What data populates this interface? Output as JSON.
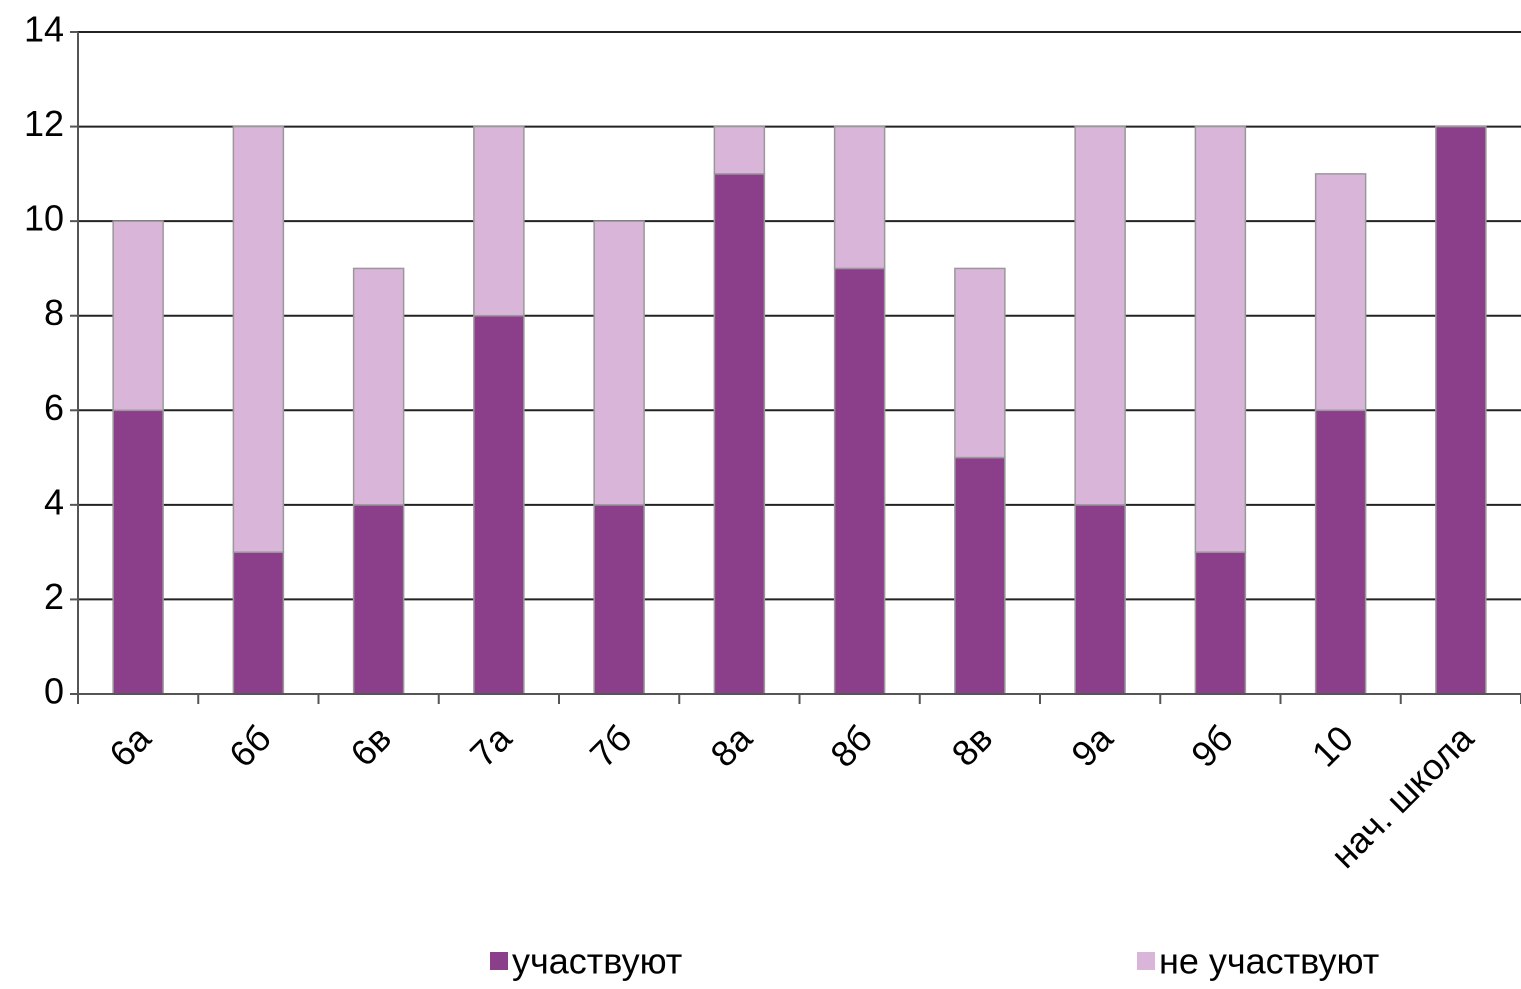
{
  "chart_data": {
    "type": "stacked_bar",
    "categories": [
      "6а",
      "6б",
      "6в",
      "7а",
      "7б",
      "8а",
      "8б",
      "8в",
      "9а",
      "9б",
      "10",
      "нач. школа"
    ],
    "series": [
      {
        "name": "участвуют",
        "color": "#8b3f8b",
        "values": [
          6,
          3,
          4,
          8,
          4,
          11,
          9,
          5,
          4,
          3,
          6,
          12
        ]
      },
      {
        "name": "не участвуют",
        "color": "#d9b5d9",
        "values": [
          4,
          9,
          5,
          4,
          6,
          1,
          3,
          4,
          8,
          9,
          5,
          0
        ]
      }
    ],
    "ylim": [
      0,
      14
    ],
    "yticks": [
      0,
      2,
      4,
      6,
      8,
      10,
      12,
      14
    ],
    "grid": true,
    "legend": "bottom"
  }
}
